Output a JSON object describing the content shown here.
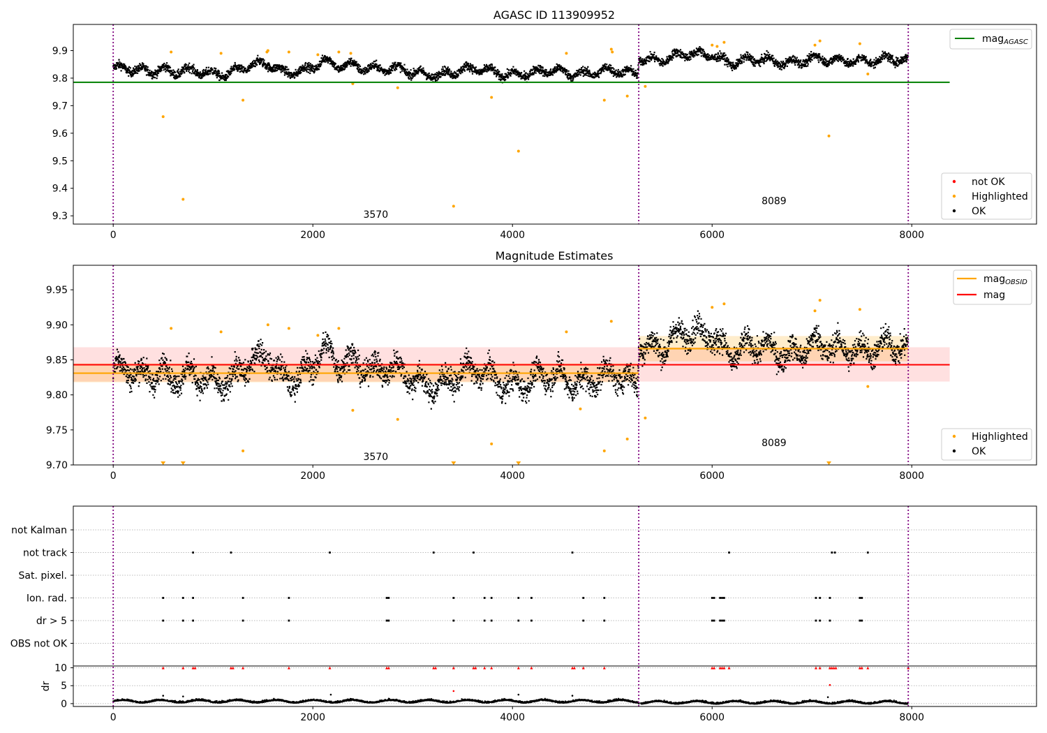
{
  "chart_data": [
    {
      "type": "scatter",
      "title": "AGASC ID 113909952",
      "xlim": [
        -400,
        9250
      ],
      "ylim": [
        9.27,
        9.995
      ],
      "xticks": [
        0,
        2000,
        4000,
        6000,
        8000
      ],
      "xtick_labels": [
        "0",
        "2000",
        "4000",
        "6000",
        "8000"
      ],
      "yticks": [
        9.3,
        9.4,
        9.5,
        9.6,
        9.7,
        9.8,
        9.9
      ],
      "ytick_labels": [
        "9.3",
        "9.4",
        "9.5",
        "9.6",
        "9.7",
        "9.8",
        "9.9"
      ],
      "obs_boundaries": [
        0,
        5265,
        7965
      ],
      "obs_labels": [
        {
          "text": "3570",
          "x": 2630,
          "y": 9.305
        },
        {
          "text": "8089",
          "x": 6620,
          "y": 9.355
        }
      ],
      "mag_agasc": {
        "value": 9.785,
        "x_range": [
          -400,
          8380
        ],
        "color": "#008000"
      },
      "series_colors": {
        "not_ok": "#ff0000",
        "highlighted": "#ffa500",
        "ok": "#000000"
      },
      "highlighted_points": [
        [
          500,
          9.66
        ],
        [
          700,
          9.36
        ],
        [
          1300,
          9.72
        ],
        [
          2400,
          9.78
        ],
        [
          2850,
          9.765
        ],
        [
          3410,
          9.335
        ],
        [
          3790,
          9.73
        ],
        [
          4060,
          9.535
        ],
        [
          4920,
          9.72
        ],
        [
          5150,
          9.735
        ],
        [
          5330,
          9.77
        ],
        [
          7170,
          9.59
        ],
        [
          580,
          9.895
        ],
        [
          1080,
          9.89
        ],
        [
          1550,
          9.9
        ],
        [
          1540,
          9.895
        ],
        [
          1760,
          9.895
        ],
        [
          2050,
          9.885
        ],
        [
          2260,
          9.895
        ],
        [
          2380,
          9.89
        ],
        [
          4540,
          9.89
        ],
        [
          4990,
          9.905
        ],
        [
          5000,
          9.895
        ],
        [
          6000,
          9.92
        ],
        [
          6050,
          9.915
        ],
        [
          6120,
          9.93
        ],
        [
          7030,
          9.92
        ],
        [
          7080,
          9.935
        ],
        [
          7480,
          9.925
        ],
        [
          7560,
          9.815
        ]
      ],
      "ok_profile": [
        [
          0,
          9.83
        ],
        [
          500,
          9.84
        ],
        [
          600,
          9.82
        ],
        [
          1100,
          9.825
        ],
        [
          1550,
          9.85
        ],
        [
          1700,
          9.83
        ],
        [
          2000,
          9.84
        ],
        [
          2100,
          9.86
        ],
        [
          2250,
          9.84
        ],
        [
          2400,
          9.855
        ],
        [
          3000,
          9.82
        ],
        [
          3400,
          9.825
        ],
        [
          3800,
          9.83
        ],
        [
          4200,
          9.815
        ],
        [
          4500,
          9.83
        ],
        [
          4700,
          9.825
        ],
        [
          5250,
          9.82
        ],
        [
          5270,
          9.885
        ],
        [
          5500,
          9.87
        ],
        [
          6000,
          9.895
        ],
        [
          6200,
          9.86
        ],
        [
          7000,
          9.87
        ],
        [
          7200,
          9.86
        ],
        [
          7450,
          9.875
        ],
        [
          7960,
          9.86
        ]
      ],
      "legend_top": [
        {
          "label": "mag",
          "sub": "AGASC",
          "color": "#008000"
        }
      ],
      "legend_bottom": [
        {
          "label": "not OK",
          "color": "#ff0000"
        },
        {
          "label": "Highlighted",
          "color": "#ffa500"
        },
        {
          "label": "OK",
          "color": "#000000"
        }
      ]
    },
    {
      "type": "scatter",
      "title": "Magnitude Estimates",
      "xlim": [
        -400,
        9250
      ],
      "ylim": [
        9.7,
        9.985
      ],
      "xticks": [
        0,
        2000,
        4000,
        6000,
        8000
      ],
      "xtick_labels": [
        "0",
        "2000",
        "4000",
        "6000",
        "8000"
      ],
      "yticks": [
        9.7,
        9.75,
        9.8,
        9.85,
        9.9,
        9.95
      ],
      "ytick_labels": [
        "9.70",
        "9.75",
        "9.80",
        "9.85",
        "9.90",
        "9.95"
      ],
      "obs_boundaries": [
        0,
        5265,
        7965
      ],
      "obs_labels": [
        {
          "text": "3570",
          "x": 2630,
          "y": 9.712
        },
        {
          "text": "8089",
          "x": 6620,
          "y": 9.732
        }
      ],
      "mag": {
        "value": 9.843,
        "low": 9.819,
        "high": 9.868,
        "x_range": [
          -400,
          8380
        ],
        "color": "#ff0000"
      },
      "mag_obsid": [
        {
          "value": 9.831,
          "low": 9.818,
          "high": 9.845,
          "x_range": [
            -400,
            5265
          ]
        },
        {
          "value": 9.866,
          "low": 9.848,
          "high": 9.884,
          "x_range": [
            5265,
            7965
          ]
        }
      ],
      "series_colors": {
        "highlighted": "#ffa500",
        "ok": "#000000",
        "mag_obsid": "#ffa500"
      },
      "highlighted_points": [
        [
          580,
          9.895
        ],
        [
          1080,
          9.89
        ],
        [
          1550,
          9.9
        ],
        [
          1760,
          9.895
        ],
        [
          2050,
          9.885
        ],
        [
          2260,
          9.895
        ],
        [
          2400,
          9.778
        ],
        [
          2850,
          9.765
        ],
        [
          3790,
          9.73
        ],
        [
          4540,
          9.89
        ],
        [
          4680,
          9.78
        ],
        [
          4920,
          9.72
        ],
        [
          4990,
          9.905
        ],
        [
          5150,
          9.737
        ],
        [
          5330,
          9.767
        ],
        [
          1300,
          9.72
        ],
        [
          6000,
          9.925
        ],
        [
          6120,
          9.93
        ],
        [
          7080,
          9.935
        ],
        [
          7030,
          9.92
        ],
        [
          7480,
          9.922
        ],
        [
          7560,
          9.812
        ]
      ],
      "clipped_points": [
        500,
        700,
        3410,
        4060,
        7170
      ],
      "ok_profile": [
        [
          0,
          9.83
        ],
        [
          500,
          9.84
        ],
        [
          600,
          9.82
        ],
        [
          1100,
          9.825
        ],
        [
          1550,
          9.85
        ],
        [
          1700,
          9.83
        ],
        [
          2000,
          9.84
        ],
        [
          2100,
          9.86
        ],
        [
          2250,
          9.84
        ],
        [
          2400,
          9.855
        ],
        [
          3000,
          9.82
        ],
        [
          3400,
          9.825
        ],
        [
          3800,
          9.83
        ],
        [
          4200,
          9.815
        ],
        [
          4500,
          9.83
        ],
        [
          4700,
          9.825
        ],
        [
          5250,
          9.82
        ],
        [
          5270,
          9.885
        ],
        [
          5500,
          9.87
        ],
        [
          6000,
          9.895
        ],
        [
          6200,
          9.86
        ],
        [
          7000,
          9.87
        ],
        [
          7200,
          9.86
        ],
        [
          7450,
          9.875
        ],
        [
          7960,
          9.86
        ]
      ],
      "legend_top": [
        {
          "label": "mag",
          "sub": "OBSID",
          "color": "#ffa500"
        },
        {
          "label": "mag",
          "sub": "",
          "color": "#ff0000"
        }
      ],
      "legend_bottom": [
        {
          "label": "Highlighted",
          "color": "#ffa500"
        },
        {
          "label": "OK",
          "color": "#000000"
        }
      ]
    },
    {
      "type": "scatter",
      "xlim": [
        -400,
        9250
      ],
      "xticks": [
        0,
        2000,
        4000,
        6000,
        8000
      ],
      "xtick_labels": [
        "0",
        "2000",
        "4000",
        "6000",
        "8000"
      ],
      "obs_boundaries": [
        0,
        5265,
        7965
      ],
      "flag_rows": [
        "not Kalman",
        "not track",
        "Sat. pixel.",
        "Ion. rad.",
        "dr > 5",
        "OBS not OK"
      ],
      "flags": {
        "not Kalman": [],
        "not track": [
          800,
          1180,
          2170,
          3210,
          3610,
          4600,
          6170,
          7200,
          7230,
          7560
        ],
        "Sat. pixel.": [],
        "Ion. rad.": [
          500,
          700,
          800,
          1300,
          1760,
          2740,
          2760,
          3410,
          3720,
          3790,
          4060,
          4190,
          4710,
          4920,
          6000,
          6020,
          6080,
          6100,
          6120,
          7040,
          7080,
          7180,
          7480,
          7500
        ],
        "dr > 5": [
          500,
          700,
          800,
          1300,
          1760,
          2740,
          2760,
          3410,
          3720,
          3790,
          4060,
          4190,
          4710,
          4920,
          6000,
          6020,
          6080,
          6100,
          6120,
          7040,
          7080,
          7180,
          7480,
          7500
        ],
        "OBS not OK": []
      },
      "dr": {
        "ylabel": "dr",
        "ylim": [
          -0.8,
          10.5
        ],
        "yticks": [
          0,
          5,
          10
        ],
        "ytick_labels": [
          "0",
          "5",
          "10"
        ],
        "clip_value": 10,
        "red_markers": [
          500,
          700,
          800,
          820,
          1180,
          1200,
          1300,
          1760,
          2170,
          2740,
          2760,
          3210,
          3230,
          3410,
          3610,
          3630,
          3720,
          3790,
          4060,
          4190,
          4600,
          4620,
          4710,
          4920,
          6000,
          6020,
          6080,
          6100,
          6120,
          6170,
          7040,
          7080,
          7180,
          7200,
          7220,
          7240,
          7480,
          7500,
          7560,
          7965
        ],
        "outliers": [
          [
            500,
            2.2
          ],
          [
            700,
            2.0
          ],
          [
            2180,
            2.5
          ],
          [
            3410,
            3.5
          ],
          [
            4060,
            2.5
          ],
          [
            4600,
            2.2
          ],
          [
            7180,
            5.2
          ],
          [
            7160,
            1.8
          ]
        ],
        "color_marker": "#ff0000"
      }
    }
  ]
}
